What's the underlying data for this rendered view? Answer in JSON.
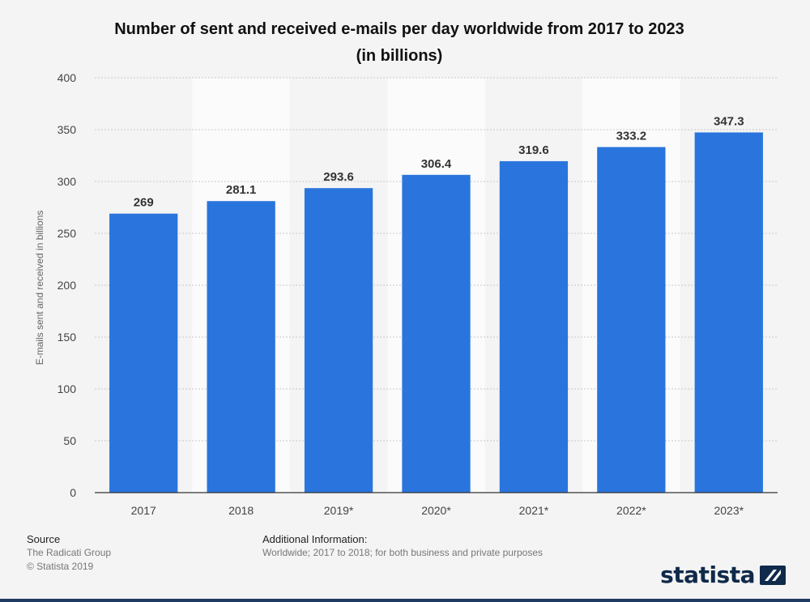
{
  "chart_data": {
    "type": "bar",
    "title_lines": [
      "Number of sent and received e-mails per day worldwide from 2017 to 2023",
      "(in billions)"
    ],
    "xlabel": "",
    "ylabel": "E-mails sent and received in billions",
    "categories": [
      "2017",
      "2018",
      "2019*",
      "2020*",
      "2021*",
      "2022*",
      "2023*"
    ],
    "values": [
      269,
      281.1,
      293.6,
      306.4,
      319.6,
      333.2,
      347.3
    ],
    "value_labels": [
      "269",
      "281.1",
      "293.6",
      "306.4",
      "319.6",
      "333.2",
      "347.3"
    ],
    "ylim": [
      0,
      400
    ],
    "yticks": [
      0,
      50,
      100,
      150,
      200,
      250,
      300,
      350,
      400
    ],
    "grid": true,
    "bar_color": "#2a75dd"
  },
  "footer": {
    "source_heading": "Source",
    "source_lines": [
      "The Radicati Group",
      "© Statista 2019"
    ],
    "info_heading": "Additional Information:",
    "info_text": "Worldwide; 2017 to 2018; for both business and private purposes"
  },
  "brand": {
    "name": "statista",
    "icon": "statista-logo-icon",
    "color": "#0f2a4a"
  }
}
